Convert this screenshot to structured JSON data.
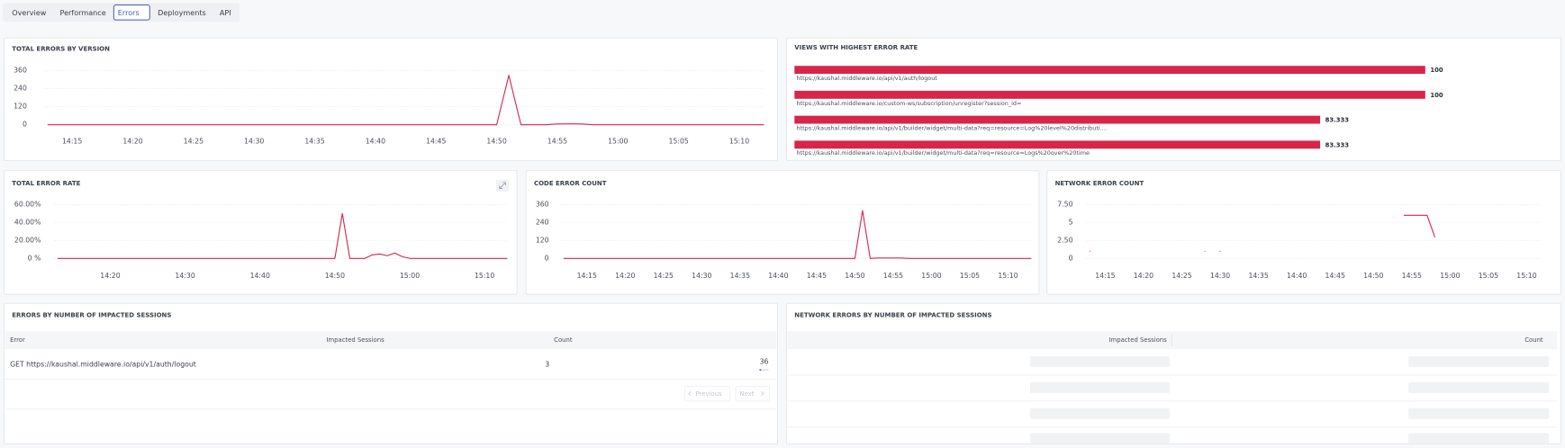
{
  "tabs": {
    "items": [
      "Overview",
      "Performance",
      "Errors",
      "Deployments",
      "API"
    ],
    "active": 2
  },
  "chart_data": [
    {
      "type": "line",
      "title": "TOTAL ERRORS BY VERSION",
      "color": "#d7264a",
      "grid": true,
      "categories": [
        null,
        null,
        "14:15",
        null,
        null,
        null,
        null,
        "14:20",
        null,
        null,
        null,
        null,
        "14:25",
        null,
        null,
        null,
        null,
        "14:30",
        null,
        null,
        null,
        null,
        "14:35",
        null,
        null,
        null,
        null,
        "14:40",
        null,
        null,
        null,
        null,
        "14:45",
        null,
        null,
        null,
        null,
        "14:50",
        null,
        null,
        null,
        null,
        "14:55",
        null,
        null,
        null,
        null,
        "15:00",
        null,
        null,
        null,
        null,
        "15:05",
        null,
        null,
        null,
        null,
        "15:10",
        null,
        null
      ],
      "values": [
        0,
        0,
        0,
        0,
        0,
        0,
        0,
        0,
        0,
        0,
        0,
        0,
        0,
        0,
        0,
        0,
        0,
        0,
        0,
        0,
        0,
        0,
        0,
        0,
        0,
        0,
        0,
        0,
        0,
        0,
        0,
        0,
        0,
        0,
        0,
        0,
        0,
        0,
        330,
        0,
        0,
        0,
        5,
        6,
        5,
        0,
        0,
        0,
        0,
        0,
        0,
        0,
        0,
        0,
        0,
        0,
        0,
        0,
        0,
        0
      ],
      "ylim": [
        0,
        360
      ],
      "yticks": [
        0,
        120,
        240,
        360
      ]
    },
    {
      "type": "bar",
      "orientation": "horizontal",
      "title": "VIEWS WITH HIGHEST ERROR RATE",
      "color": "#d7264a",
      "categories": [
        "https://kaushal.middleware.io/api/v1/auth/logout",
        "https://kaushal.middleware.io/custom-ws/subscription/unregister?session_id=",
        "https://kaushal.middleware.io/api/v1/builder/widget/multi-data?req=resource=Log%20level%20distributi....",
        "https://kaushal.middleware.io/api/v1/builder/widget/multi-data?req=resource=Logs%20over%20time"
      ],
      "values": [
        100,
        100,
        83.333,
        83.333
      ]
    },
    {
      "type": "line",
      "title": "TOTAL ERROR RATE",
      "color": "#d7264a",
      "grid": true,
      "categories": [
        null,
        null,
        null,
        null,
        null,
        null,
        null,
        "14:20",
        null,
        null,
        null,
        null,
        null,
        null,
        null,
        null,
        null,
        "14:30",
        null,
        null,
        null,
        null,
        null,
        null,
        null,
        null,
        null,
        "14:40",
        null,
        null,
        null,
        null,
        null,
        null,
        null,
        null,
        null,
        "14:50",
        null,
        null,
        null,
        null,
        null,
        null,
        null,
        null,
        null,
        "15:00",
        null,
        null,
        null,
        null,
        null,
        null,
        null,
        null,
        null,
        "15:10",
        null,
        null,
        null
      ],
      "values": [
        0,
        0,
        0,
        0,
        0,
        0,
        0,
        0,
        0,
        0,
        0,
        0,
        0,
        0,
        0,
        0,
        0,
        0,
        0,
        0,
        0,
        0,
        0,
        0,
        0,
        0,
        0,
        0,
        0,
        0,
        0,
        0,
        0,
        0,
        0,
        0,
        0,
        0,
        50,
        0,
        0,
        0,
        4,
        5,
        3,
        6,
        2,
        0,
        0,
        0,
        0,
        0,
        0,
        0,
        0,
        0,
        0,
        0,
        0,
        0,
        0
      ],
      "ylim": [
        0,
        60
      ],
      "yticks": [
        {
          "value": 0,
          "label": "0 %"
        },
        {
          "value": 20,
          "label": "20.00%"
        },
        {
          "value": 40,
          "label": "40.00%"
        },
        {
          "value": 60,
          "label": "60.00%"
        }
      ]
    },
    {
      "type": "line",
      "title": "CODE ERROR COUNT",
      "color": "#d7264a",
      "grid": true,
      "categories": [
        null,
        null,
        null,
        "14:15",
        null,
        null,
        null,
        null,
        "14:20",
        null,
        null,
        null,
        null,
        "14:25",
        null,
        null,
        null,
        null,
        "14:30",
        null,
        null,
        null,
        null,
        "14:35",
        null,
        null,
        null,
        null,
        "14:40",
        null,
        null,
        null,
        null,
        "14:45",
        null,
        null,
        null,
        null,
        "14:50",
        null,
        null,
        null,
        null,
        "14:55",
        null,
        null,
        null,
        null,
        "15:00",
        null,
        null,
        null,
        null,
        "15:05",
        null,
        null,
        null,
        null,
        "15:10",
        null,
        null,
        null
      ],
      "values": [
        0,
        0,
        0,
        0,
        0,
        0,
        0,
        0,
        0,
        0,
        0,
        0,
        0,
        0,
        0,
        0,
        0,
        0,
        0,
        0,
        0,
        0,
        0,
        0,
        0,
        0,
        0,
        0,
        0,
        0,
        0,
        0,
        0,
        0,
        0,
        0,
        0,
        0,
        0,
        320,
        0,
        3,
        3,
        3,
        3,
        0,
        0,
        0,
        0,
        0,
        0,
        0,
        0,
        0,
        0,
        0,
        0,
        0,
        0,
        0,
        0,
        0
      ],
      "ylim": [
        0,
        360
      ],
      "yticks": [
        0,
        120,
        240,
        360
      ]
    },
    {
      "type": "line",
      "title": "NETWORK ERROR COUNT",
      "color": "#d7264a",
      "grid": true,
      "categories": [
        null,
        null,
        "14:15",
        null,
        null,
        null,
        null,
        "14:20",
        null,
        null,
        null,
        null,
        "14:25",
        null,
        null,
        null,
        null,
        "14:30",
        null,
        null,
        null,
        null,
        "14:35",
        null,
        null,
        null,
        null,
        "14:40",
        null,
        null,
        null,
        null,
        "14:45",
        null,
        null,
        null,
        null,
        "14:50",
        null,
        null,
        null,
        null,
        "14:55",
        null,
        null,
        null,
        null,
        "15:00",
        null,
        null,
        null,
        null,
        "15:05",
        null,
        null,
        null,
        null,
        "15:10",
        null,
        null
      ],
      "values": [
        1,
        null,
        null,
        null,
        null,
        null,
        null,
        null,
        null,
        null,
        null,
        null,
        null,
        null,
        null,
        1,
        null,
        1,
        null,
        null,
        null,
        null,
        null,
        null,
        null,
        null,
        null,
        null,
        null,
        null,
        null,
        null,
        null,
        null,
        null,
        null,
        null,
        null,
        null,
        null,
        null,
        6,
        6,
        6,
        6,
        3,
        null,
        null,
        null,
        null,
        null,
        null,
        null,
        null,
        null,
        null,
        null,
        null,
        null,
        null
      ],
      "ylim": [
        0,
        7.5
      ],
      "yticks": [
        0,
        {
          "value": 2.5,
          "label": "2.50"
        },
        5,
        {
          "value": 7.5,
          "label": "7.50"
        }
      ]
    }
  ],
  "tables": [
    {
      "title": "ERRORS BY NUMBER OF IMPACTED SESSIONS",
      "columns": [
        "Error",
        "Impacted Sessions",
        "Count"
      ],
      "rows": [
        [
          "GET https://kaushal.middleware.io/api/v1/auth/logout",
          3,
          36
        ]
      ],
      "pagination": [
        "Previous",
        "Next"
      ]
    },
    {
      "title": "NETWORK ERRORS BY NUMBER OF IMPACTED SESSIONS",
      "columns": [
        "Impacted Sessions",
        "Count"
      ]
    }
  ]
}
